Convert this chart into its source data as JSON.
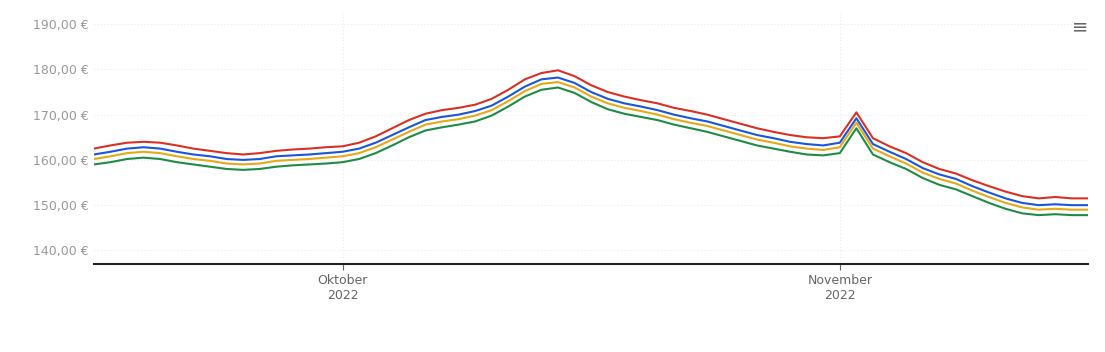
{
  "yticks": [
    140,
    150,
    160,
    170,
    180,
    190
  ],
  "ylim": [
    137,
    193
  ],
  "background_color": "#ffffff",
  "grid_color": "#e0e0e0",
  "series_colors": {
    "1000": "#d93025",
    "2000": "#1a56db",
    "3000": "#e6a817",
    "5000": "#1e8c45"
  },
  "xtick_positions": [
    15,
    45
  ],
  "xtick_labels": [
    "Oktober\n2022",
    "November\n2022"
  ],
  "series": {
    "1000": [
      162.5,
      163.2,
      163.8,
      164.0,
      163.8,
      163.2,
      162.5,
      162.0,
      161.5,
      161.2,
      161.5,
      162.0,
      162.3,
      162.5,
      162.8,
      163.0,
      163.8,
      165.2,
      167.0,
      168.8,
      170.2,
      171.0,
      171.5,
      172.2,
      173.5,
      175.5,
      177.8,
      179.2,
      179.8,
      178.5,
      176.5,
      175.0,
      174.0,
      173.2,
      172.5,
      171.5,
      170.8,
      170.0,
      169.0,
      168.0,
      167.0,
      166.2,
      165.5,
      165.0,
      164.8,
      165.2,
      170.5,
      164.8,
      163.0,
      161.5,
      159.5,
      158.0,
      157.0,
      155.5,
      154.2,
      153.0,
      152.0,
      151.5,
      151.8,
      151.5,
      151.5
    ],
    "2000": [
      161.2,
      161.8,
      162.5,
      162.8,
      162.5,
      161.8,
      161.2,
      160.8,
      160.2,
      160.0,
      160.2,
      160.8,
      161.0,
      161.2,
      161.5,
      161.8,
      162.5,
      163.8,
      165.5,
      167.2,
      168.8,
      169.5,
      170.0,
      170.8,
      172.0,
      174.0,
      176.2,
      177.8,
      178.2,
      177.0,
      175.0,
      173.5,
      172.5,
      171.8,
      171.0,
      170.0,
      169.2,
      168.5,
      167.5,
      166.5,
      165.5,
      164.8,
      164.0,
      163.5,
      163.2,
      163.8,
      169.2,
      163.5,
      161.8,
      160.2,
      158.2,
      156.8,
      155.8,
      154.2,
      152.8,
      151.5,
      150.5,
      150.0,
      150.2,
      150.0,
      150.0
    ],
    "3000": [
      160.2,
      160.8,
      161.5,
      161.8,
      161.5,
      160.8,
      160.2,
      159.8,
      159.2,
      159.0,
      159.2,
      159.8,
      160.0,
      160.2,
      160.5,
      160.8,
      161.5,
      162.8,
      164.5,
      166.2,
      167.8,
      168.5,
      169.0,
      169.8,
      171.0,
      173.0,
      175.2,
      176.8,
      177.2,
      176.0,
      174.0,
      172.5,
      171.5,
      170.8,
      170.0,
      169.0,
      168.2,
      167.5,
      166.5,
      165.5,
      164.5,
      163.8,
      163.0,
      162.5,
      162.2,
      162.8,
      168.2,
      162.5,
      160.8,
      159.2,
      157.2,
      155.8,
      154.8,
      153.2,
      151.8,
      150.5,
      149.5,
      149.0,
      149.2,
      149.0,
      149.0
    ],
    "5000": [
      159.0,
      159.5,
      160.2,
      160.5,
      160.2,
      159.5,
      159.0,
      158.5,
      158.0,
      157.8,
      158.0,
      158.5,
      158.8,
      159.0,
      159.2,
      159.5,
      160.2,
      161.5,
      163.2,
      165.0,
      166.5,
      167.2,
      167.8,
      168.5,
      169.8,
      171.8,
      174.0,
      175.5,
      176.0,
      174.8,
      172.8,
      171.2,
      170.2,
      169.5,
      168.8,
      167.8,
      167.0,
      166.2,
      165.2,
      164.2,
      163.2,
      162.5,
      161.8,
      161.2,
      161.0,
      161.5,
      167.0,
      161.2,
      159.5,
      158.0,
      156.0,
      154.5,
      153.5,
      152.0,
      150.5,
      149.2,
      148.2,
      147.8,
      148.0,
      147.8,
      147.8
    ]
  }
}
